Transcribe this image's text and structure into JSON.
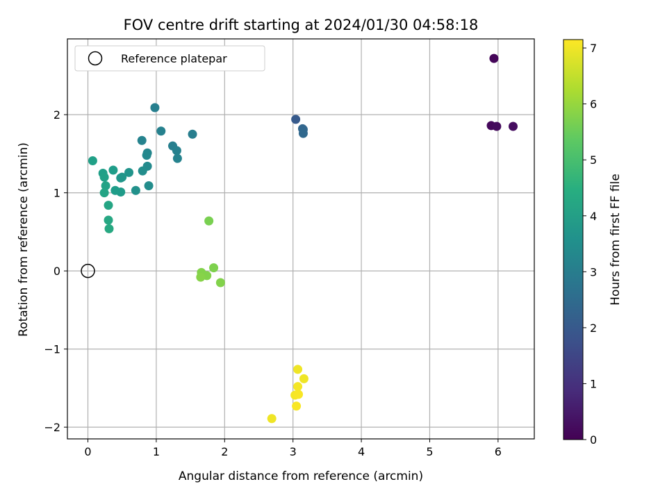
{
  "chart_data": {
    "type": "scatter",
    "title": "FOV centre drift starting at 2024/01/30 04:58:18",
    "xlabel": "Angular distance from reference (arcmin)",
    "ylabel": "Rotation from reference (arcmin)",
    "xlim": [
      -0.3,
      6.53
    ],
    "ylim": [
      -2.15,
      2.97
    ],
    "xticks": [
      0,
      1,
      2,
      3,
      4,
      5,
      6
    ],
    "yticks": [
      -2,
      -1,
      0,
      1,
      2
    ],
    "xtick_labels": [
      "0",
      "1",
      "2",
      "3",
      "4",
      "5",
      "6"
    ],
    "ytick_labels": [
      "−2",
      "−1",
      "0",
      "1",
      "2"
    ],
    "grid": true,
    "legend": {
      "position": "top-left",
      "entries": [
        "Reference platepar"
      ]
    },
    "reference_point": {
      "x": 0,
      "y": 0
    },
    "colorbar": {
      "label": "Hours from first FF file",
      "colormap": "viridis",
      "range": [
        0,
        7.15
      ],
      "ticks": [
        0,
        1,
        2,
        3,
        4,
        5,
        6,
        7
      ],
      "tick_labels": [
        "0",
        "1",
        "2",
        "3",
        "4",
        "5",
        "6",
        "7"
      ]
    },
    "points": [
      {
        "x": 5.94,
        "y": 2.72,
        "hours": 0.1
      },
      {
        "x": 5.9,
        "y": 1.86,
        "hours": 0.15
      },
      {
        "x": 5.98,
        "y": 1.85,
        "hours": 0.2
      },
      {
        "x": 6.22,
        "y": 1.85,
        "hours": 0.25
      },
      {
        "x": 3.04,
        "y": 1.94,
        "hours": 2.0
      },
      {
        "x": 3.14,
        "y": 1.82,
        "hours": 2.3
      },
      {
        "x": 3.15,
        "y": 1.81,
        "hours": 2.35
      },
      {
        "x": 3.15,
        "y": 1.76,
        "hours": 2.4
      },
      {
        "x": 0.98,
        "y": 2.09,
        "hours": 3.1
      },
      {
        "x": 1.07,
        "y": 1.79,
        "hours": 3.15
      },
      {
        "x": 1.53,
        "y": 1.75,
        "hours": 3.05
      },
      {
        "x": 0.79,
        "y": 1.67,
        "hours": 3.2
      },
      {
        "x": 1.24,
        "y": 1.6,
        "hours": 3.1
      },
      {
        "x": 1.3,
        "y": 1.54,
        "hours": 3.15
      },
      {
        "x": 1.31,
        "y": 1.44,
        "hours": 3.2
      },
      {
        "x": 0.87,
        "y": 1.51,
        "hours": 3.3
      },
      {
        "x": 0.86,
        "y": 1.48,
        "hours": 3.35
      },
      {
        "x": 0.87,
        "y": 1.34,
        "hours": 3.4
      },
      {
        "x": 0.8,
        "y": 1.28,
        "hours": 3.5
      },
      {
        "x": 0.89,
        "y": 1.09,
        "hours": 3.5
      },
      {
        "x": 0.7,
        "y": 1.03,
        "hours": 3.6
      },
      {
        "x": 0.6,
        "y": 1.26,
        "hours": 3.7
      },
      {
        "x": 0.48,
        "y": 1.19,
        "hours": 3.8
      },
      {
        "x": 0.5,
        "y": 1.2,
        "hours": 3.75
      },
      {
        "x": 0.48,
        "y": 1.01,
        "hours": 3.9
      },
      {
        "x": 0.4,
        "y": 1.03,
        "hours": 3.95
      },
      {
        "x": 0.37,
        "y": 1.29,
        "hours": 3.95
      },
      {
        "x": 0.22,
        "y": 1.25,
        "hours": 4.0
      },
      {
        "x": 0.24,
        "y": 1.2,
        "hours": 4.05
      },
      {
        "x": 0.26,
        "y": 1.09,
        "hours": 4.1
      },
      {
        "x": 0.24,
        "y": 1.0,
        "hours": 4.15
      },
      {
        "x": 0.07,
        "y": 1.41,
        "hours": 4.05
      },
      {
        "x": 0.3,
        "y": 0.84,
        "hours": 4.2
      },
      {
        "x": 0.3,
        "y": 0.65,
        "hours": 4.25
      },
      {
        "x": 0.31,
        "y": 0.54,
        "hours": 4.3
      },
      {
        "x": 1.77,
        "y": 0.64,
        "hours": 5.7
      },
      {
        "x": 1.84,
        "y": 0.04,
        "hours": 5.75
      },
      {
        "x": 1.66,
        "y": -0.02,
        "hours": 5.8
      },
      {
        "x": 1.74,
        "y": -0.06,
        "hours": 5.8
      },
      {
        "x": 1.65,
        "y": -0.08,
        "hours": 5.85
      },
      {
        "x": 1.94,
        "y": -0.15,
        "hours": 5.8
      },
      {
        "x": 3.07,
        "y": -1.26,
        "hours": 7.0
      },
      {
        "x": 3.16,
        "y": -1.38,
        "hours": 7.0
      },
      {
        "x": 3.07,
        "y": -1.48,
        "hours": 7.05
      },
      {
        "x": 3.03,
        "y": -1.59,
        "hours": 7.05
      },
      {
        "x": 3.08,
        "y": -1.58,
        "hours": 7.1
      },
      {
        "x": 3.05,
        "y": -1.73,
        "hours": 7.1
      },
      {
        "x": 2.69,
        "y": -1.89,
        "hours": 7.0
      }
    ]
  }
}
